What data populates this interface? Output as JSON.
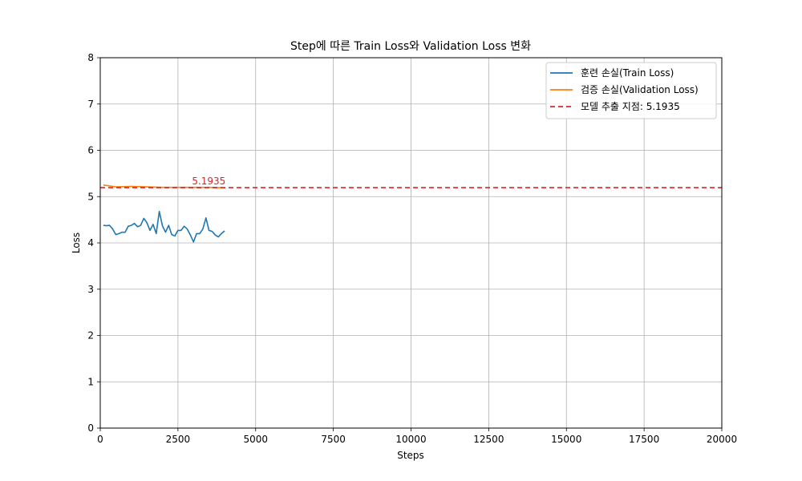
{
  "chart_data": {
    "type": "line",
    "title": "Step에 따른 Train Loss와 Validation Loss 변화",
    "xlabel": "Steps",
    "ylabel": "Loss",
    "xlim": [
      0,
      20000
    ],
    "ylim": [
      0,
      8
    ],
    "xticks": [
      0,
      2500,
      5000,
      7500,
      10000,
      12500,
      15000,
      17500,
      20000
    ],
    "yticks": [
      0,
      1,
      2,
      3,
      4,
      5,
      6,
      7,
      8
    ],
    "grid": true,
    "legend_position": "top-right",
    "series": [
      {
        "name": "훈련 손실(Train Loss)",
        "color": "#1f77b4",
        "style": "solid",
        "x": [
          100,
          200,
          300,
          400,
          500,
          600,
          700,
          800,
          900,
          1000,
          1100,
          1200,
          1300,
          1400,
          1500,
          1600,
          1700,
          1800,
          1900,
          2000,
          2100,
          2200,
          2300,
          2400,
          2500,
          2600,
          2700,
          2800,
          2900,
          3000,
          3100,
          3200,
          3300,
          3400,
          3500,
          3600,
          3700,
          3800,
          3900,
          4000
        ],
        "y": [
          4.38,
          4.37,
          4.38,
          4.3,
          4.18,
          4.2,
          4.23,
          4.23,
          4.36,
          4.38,
          4.42,
          4.35,
          4.38,
          4.53,
          4.44,
          4.27,
          4.4,
          4.2,
          4.68,
          4.37,
          4.23,
          4.38,
          4.18,
          4.15,
          4.27,
          4.27,
          4.36,
          4.3,
          4.17,
          4.02,
          4.2,
          4.2,
          4.3,
          4.54,
          4.27,
          4.25,
          4.17,
          4.13,
          4.2,
          4.26
        ]
      },
      {
        "name": "검증 손실(Validation Loss)",
        "color": "#ff7f0e",
        "style": "solid",
        "x": [
          100,
          500,
          1000,
          1500,
          2000,
          2500,
          3000,
          3500,
          4000
        ],
        "y": [
          5.25,
          5.21,
          5.22,
          5.21,
          5.2,
          5.2,
          5.2,
          5.2,
          5.19
        ]
      }
    ],
    "hline": {
      "name": "모델 추출 지점: 5.1935",
      "value": 5.1935,
      "color": "#d62728",
      "style": "dashed",
      "annotation": "5.1935",
      "annotation_x": 2950
    }
  }
}
